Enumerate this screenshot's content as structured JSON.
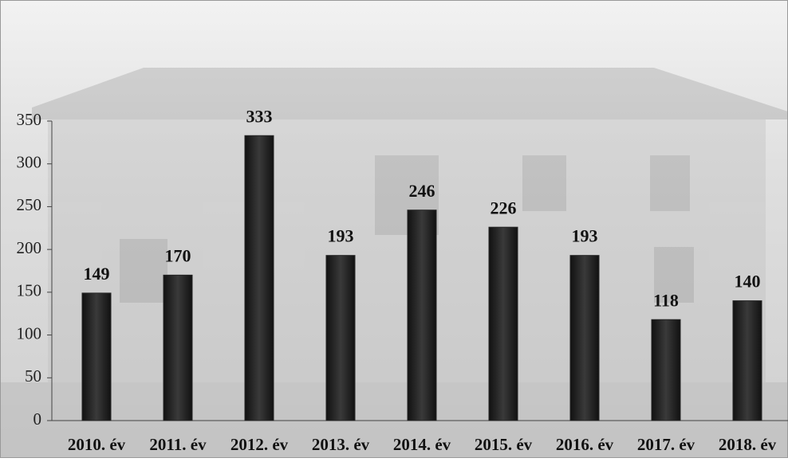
{
  "chart_data": {
    "type": "bar",
    "categories": [
      "2010. év",
      "2011. év",
      "2012. év",
      "2013. év",
      "2014. év",
      "2015. év",
      "2016. év",
      "2017. év",
      "2018. év"
    ],
    "values": [
      149,
      170,
      333,
      193,
      246,
      226,
      193,
      118,
      140
    ],
    "color": "#262626",
    "ylim": [
      0,
      350
    ],
    "yticks": [
      0,
      50,
      100,
      150,
      200,
      250,
      300,
      350
    ],
    "grid": false
  }
}
